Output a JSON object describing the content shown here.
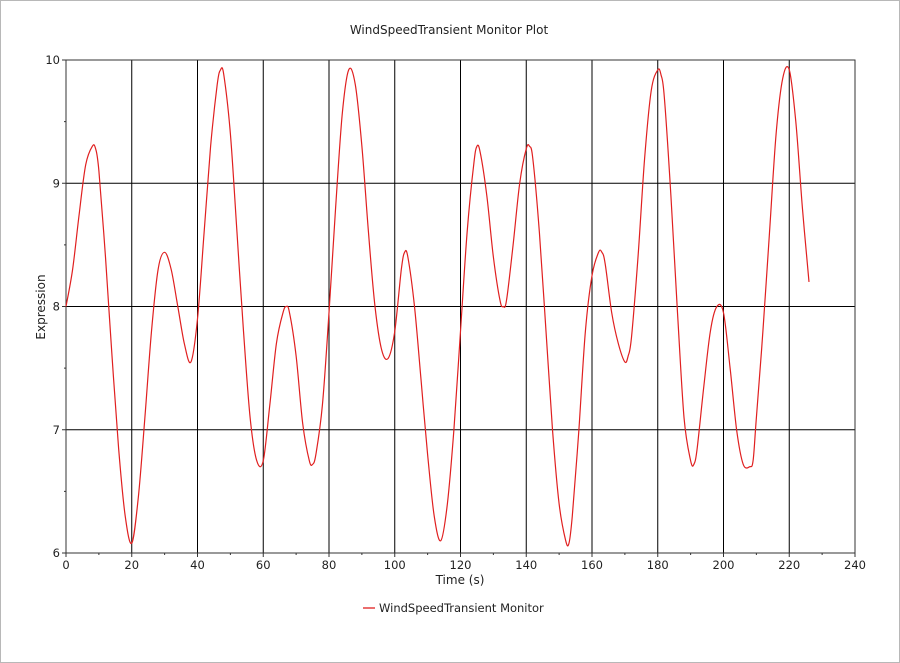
{
  "chart_data": {
    "type": "line",
    "title": "WindSpeedTransient Monitor Plot",
    "xlabel": "Time (s)",
    "ylabel": "Expression",
    "xlim": [
      0,
      240
    ],
    "ylim": [
      6,
      10
    ],
    "xticks": [
      0,
      20,
      40,
      60,
      80,
      100,
      120,
      140,
      160,
      180,
      200,
      220,
      240
    ],
    "yticks": [
      6,
      7,
      8,
      9,
      10
    ],
    "grid": true,
    "legend": "bottom-center",
    "series": [
      {
        "name": "WindSpeedTransient Monitor",
        "color": "#e02020",
        "x": [
          0,
          2,
          4,
          6,
          8,
          9,
          10,
          12,
          14,
          16,
          18,
          20,
          22,
          24,
          26,
          28,
          30,
          32,
          34,
          36,
          38,
          40,
          42,
          44,
          46,
          47,
          48,
          50,
          52,
          54,
          56,
          58,
          60,
          62,
          64,
          66,
          67,
          68,
          70,
          72,
          74,
          75,
          76,
          78,
          80,
          82,
          84,
          86,
          88,
          90,
          92,
          94,
          96,
          98,
          100,
          102,
          103,
          104,
          106,
          108,
          110,
          112,
          114,
          116,
          118,
          120,
          122,
          124,
          125,
          126,
          128,
          130,
          132,
          133,
          134,
          136,
          138,
          140,
          141,
          142,
          144,
          146,
          148,
          150,
          152,
          153,
          154,
          156,
          158,
          160,
          162,
          163,
          164,
          166,
          168,
          170,
          171,
          172,
          174,
          176,
          178,
          180,
          181,
          182,
          184,
          186,
          188,
          190,
          191,
          192,
          194,
          196,
          198,
          200,
          202,
          204,
          206,
          208,
          209,
          210,
          212,
          214,
          216,
          218,
          220,
          222,
          224,
          226
        ],
        "values": [
          8.0,
          8.3,
          8.75,
          9.15,
          9.3,
          9.28,
          9.1,
          8.4,
          7.6,
          6.85,
          6.3,
          6.08,
          6.45,
          7.1,
          7.8,
          8.3,
          8.44,
          8.3,
          8.0,
          7.7,
          7.55,
          7.9,
          8.6,
          9.3,
          9.8,
          9.92,
          9.88,
          9.4,
          8.6,
          7.8,
          7.1,
          6.75,
          6.75,
          7.2,
          7.7,
          7.95,
          8.0,
          7.95,
          7.6,
          7.05,
          6.75,
          6.72,
          6.8,
          7.2,
          7.95,
          8.8,
          9.55,
          9.92,
          9.8,
          9.3,
          8.6,
          8.0,
          7.65,
          7.58,
          7.8,
          8.3,
          8.44,
          8.4,
          8.0,
          7.4,
          6.8,
          6.3,
          6.1,
          6.4,
          7.0,
          7.8,
          8.6,
          9.15,
          9.3,
          9.25,
          8.9,
          8.4,
          8.05,
          8.0,
          8.05,
          8.5,
          9.0,
          9.28,
          9.3,
          9.2,
          8.6,
          7.8,
          7.0,
          6.4,
          6.1,
          6.08,
          6.3,
          7.0,
          7.8,
          8.25,
          8.44,
          8.44,
          8.35,
          7.95,
          7.7,
          7.55,
          7.6,
          7.75,
          8.4,
          9.2,
          9.75,
          9.92,
          9.88,
          9.7,
          8.9,
          7.95,
          7.1,
          6.75,
          6.72,
          6.85,
          7.35,
          7.8,
          8.0,
          7.95,
          7.5,
          7.0,
          6.72,
          6.7,
          6.75,
          7.1,
          7.8,
          8.6,
          9.4,
          9.85,
          9.92,
          9.5,
          8.8,
          8.2
        ]
      }
    ]
  }
}
